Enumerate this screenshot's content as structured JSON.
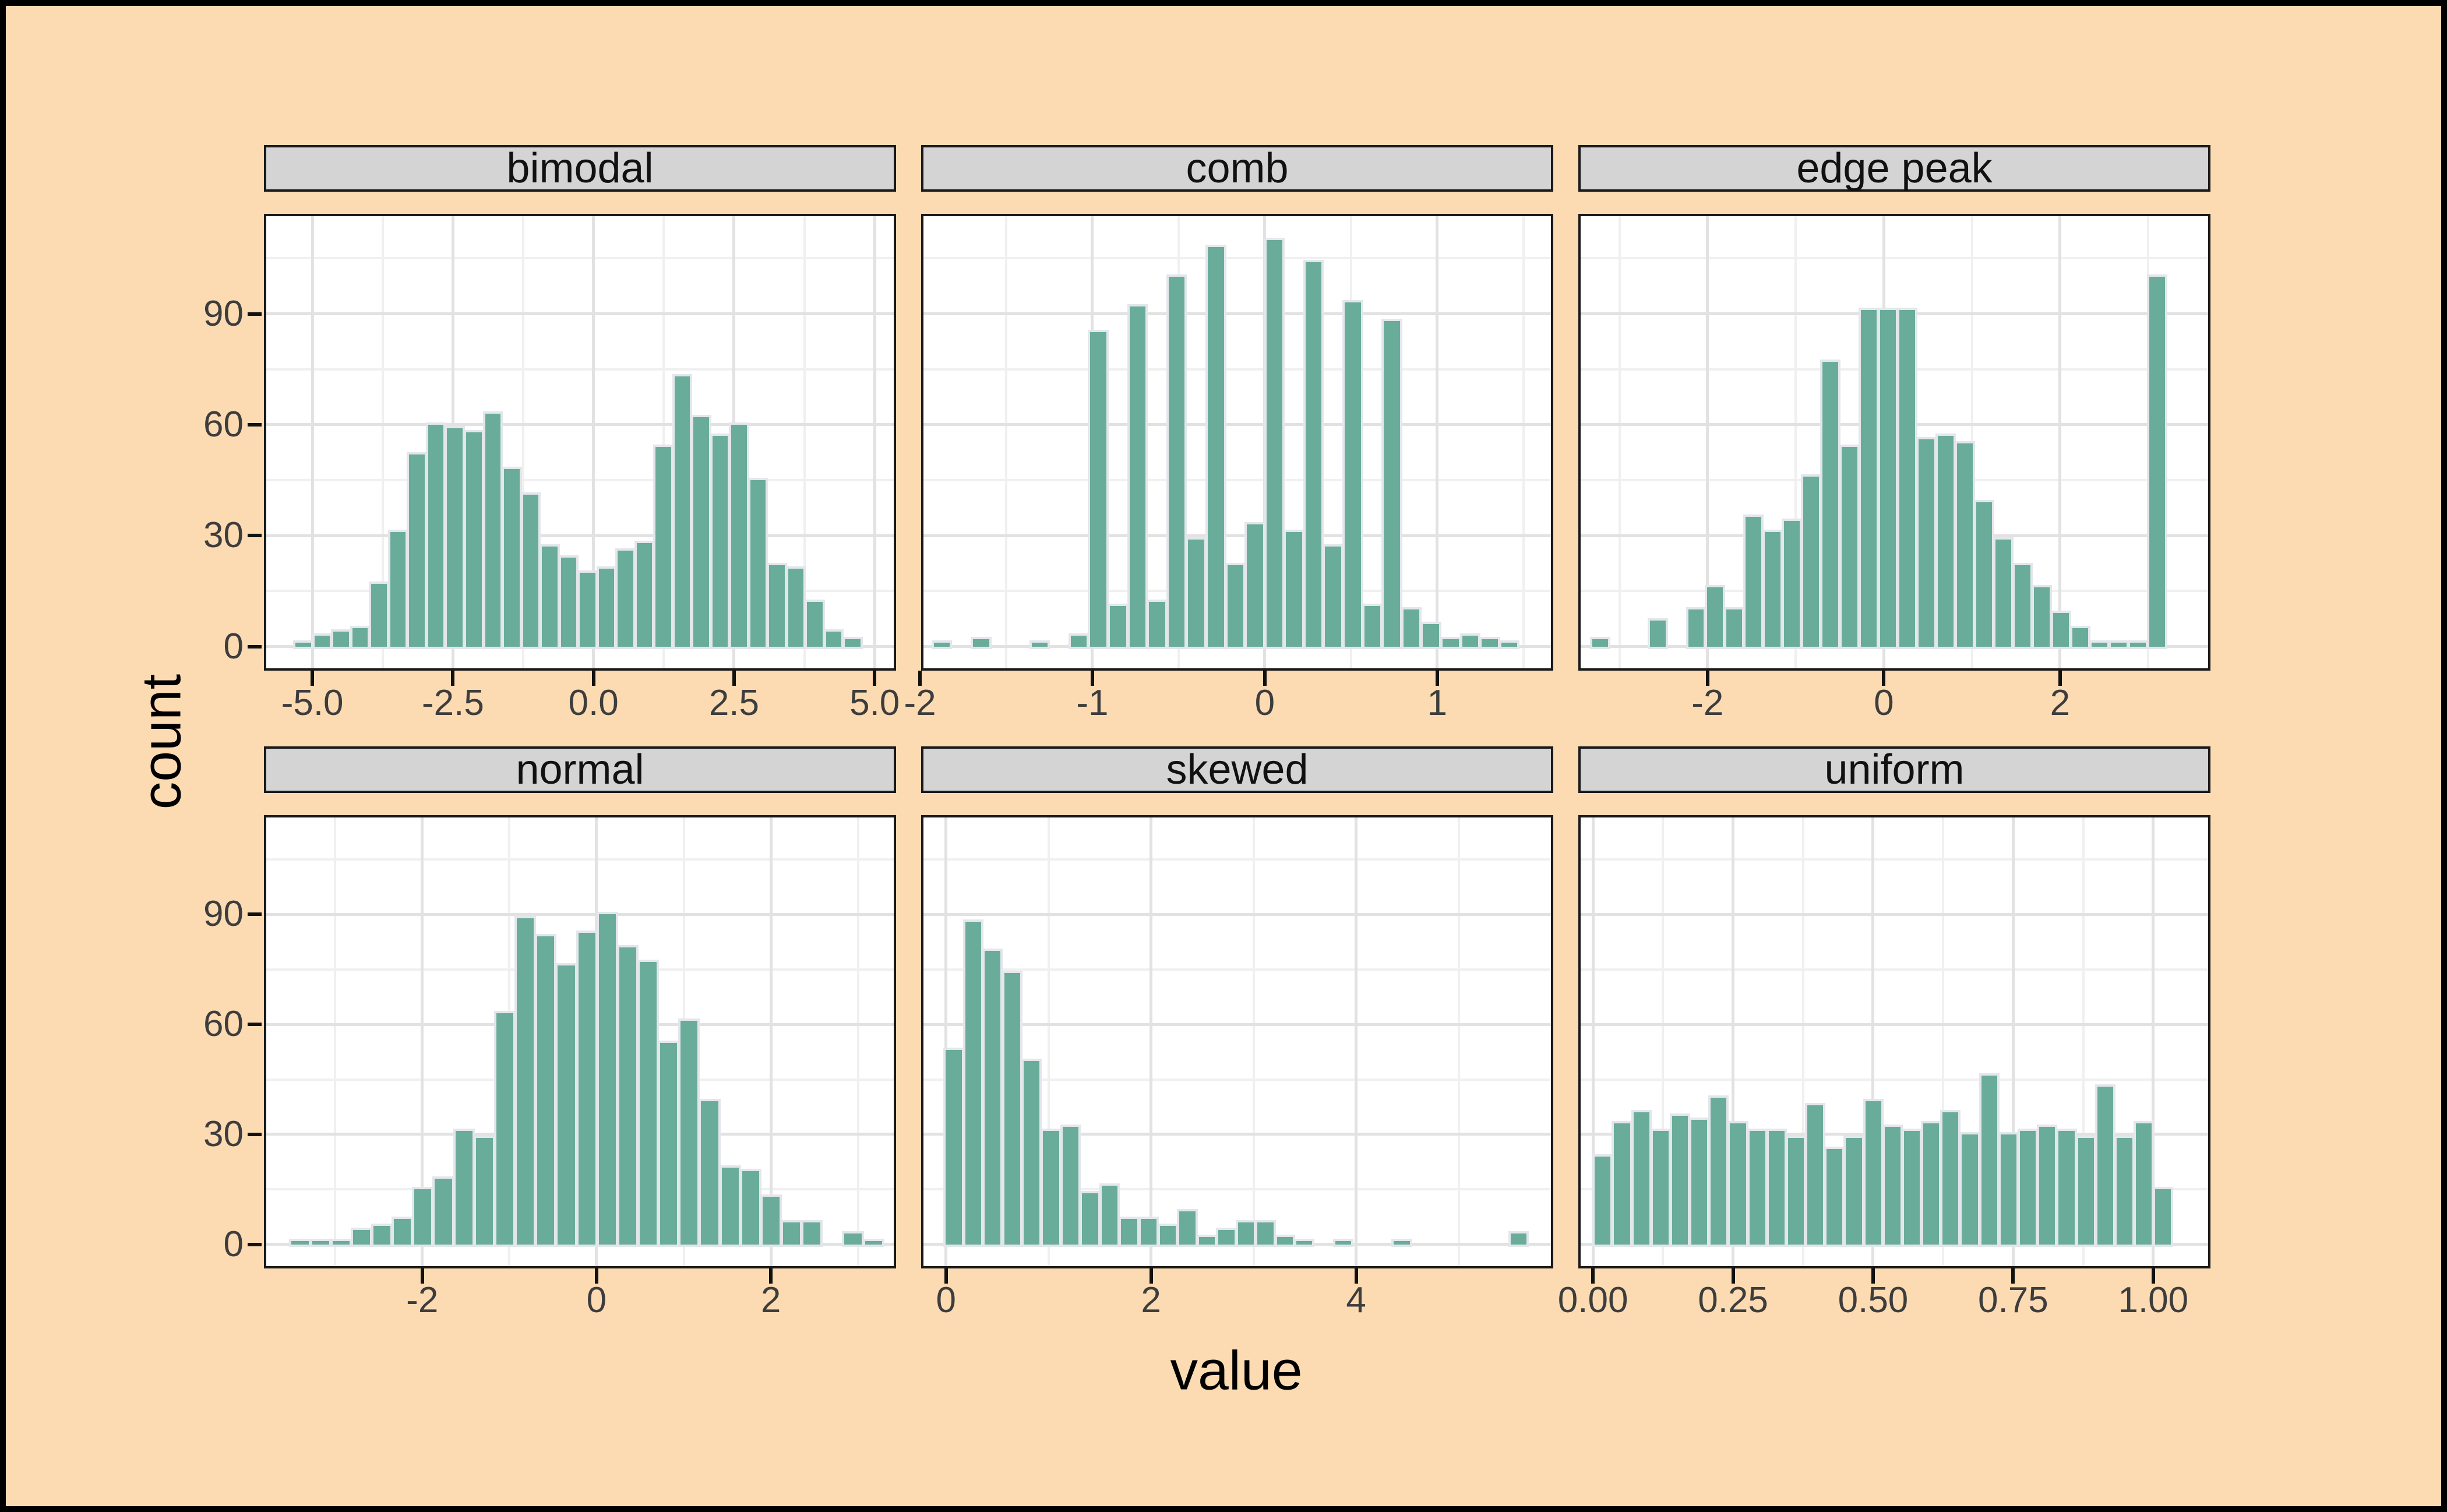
{
  "figure": {
    "background": "#FCDBB2",
    "frame_color": "#000000",
    "panel_bg": "#FFFFFF",
    "panel_border": "#1A1A1A",
    "strip_bg": "#D4D4D4",
    "grid_major": "#E2E2E2",
    "grid_minor": "#F0F0F0",
    "bar_fill": "#69AC99",
    "bar_edge": "#E3E7EC",
    "tick_text_color": "#3D3D3D"
  },
  "chart_data": {
    "type": "bar",
    "subtype": "faceted-histograms",
    "title": "",
    "xlabel": "value",
    "ylabel": "count",
    "legend": "none",
    "grid": "on",
    "y_ticks": [
      0,
      30,
      60,
      90
    ],
    "y_tick_labels": [
      "0",
      "30",
      "60",
      "90"
    ],
    "y_minor": [
      15,
      45,
      75,
      105
    ],
    "ylim": [
      -5.9,
      116.4
    ],
    "facets": [
      {
        "label": "bimodal",
        "row": 0,
        "col": 0,
        "xlim": [
          -5.82,
          5.34
        ],
        "x_ticks": [
          -5.0,
          -2.5,
          0.0,
          2.5,
          5.0
        ],
        "x_tick_labels": [
          "-5.0",
          "-2.5",
          "0.0",
          "2.5",
          "5.0"
        ],
        "x_minor": [
          -3.75,
          -1.25,
          1.25,
          3.75
        ],
        "bin_start": -5.33,
        "bin_width": 0.337,
        "counts": [
          1,
          3,
          4,
          5,
          17,
          31,
          52,
          60,
          59,
          58,
          63,
          48,
          41,
          27,
          24,
          20,
          21,
          26,
          28,
          54,
          73,
          62,
          57,
          60,
          45,
          22,
          21,
          12,
          4,
          2
        ]
      },
      {
        "label": "comb",
        "row": 0,
        "col": 1,
        "xlim": [
          -1.98,
          1.66
        ],
        "x_ticks": [
          -2,
          -1,
          0,
          1
        ],
        "x_tick_labels": [
          "-2",
          "-1",
          "0",
          "1"
        ],
        "x_minor": [
          -1.5,
          -0.5,
          0.5,
          1.5
        ],
        "bin_start": -1.93,
        "bin_width": 0.1135,
        "counts": [
          1,
          0,
          2,
          0,
          0,
          1,
          0,
          3,
          85,
          11,
          92,
          12,
          100,
          29,
          108,
          22,
          33,
          110,
          31,
          104,
          27,
          93,
          11,
          88,
          10,
          6,
          2,
          3,
          2,
          1
        ]
      },
      {
        "label": "edge peak",
        "row": 0,
        "col": 2,
        "xlim": [
          -3.44,
          3.68
        ],
        "x_ticks": [
          -2,
          0,
          2
        ],
        "x_tick_labels": [
          "-2",
          "0",
          "2"
        ],
        "x_minor": [
          -3,
          -1,
          1,
          3
        ],
        "bin_start": -3.33,
        "bin_width": 0.218,
        "counts": [
          2,
          0,
          0,
          7,
          0,
          10,
          16,
          10,
          35,
          31,
          34,
          46,
          77,
          54,
          91,
          91,
          91,
          56,
          57,
          55,
          39,
          29,
          22,
          16,
          9,
          5,
          1,
          1,
          1,
          100
        ]
      },
      {
        "label": "normal",
        "row": 1,
        "col": 0,
        "xlim": [
          -3.79,
          3.41
        ],
        "x_ticks": [
          -2,
          0,
          2
        ],
        "x_tick_labels": [
          "-2",
          "0",
          "2"
        ],
        "x_minor": [
          -3,
          -1,
          1,
          3
        ],
        "bin_start": -3.52,
        "bin_width": 0.235,
        "counts": [
          1,
          1,
          1,
          4,
          5,
          7,
          15,
          18,
          31,
          29,
          63,
          89,
          84,
          76,
          85,
          90,
          81,
          77,
          55,
          61,
          39,
          21,
          20,
          13,
          6,
          6,
          0,
          3,
          1
        ]
      },
      {
        "label": "skewed",
        "row": 1,
        "col": 1,
        "xlim": [
          -0.22,
          5.9
        ],
        "x_ticks": [
          0,
          2,
          4
        ],
        "x_tick_labels": [
          "0",
          "2",
          "4"
        ],
        "x_minor": [
          1,
          3,
          5
        ],
        "bin_start": -0.02,
        "bin_width": 0.19,
        "counts": [
          53,
          88,
          80,
          74,
          50,
          31,
          32,
          14,
          16,
          7,
          7,
          5,
          9,
          2,
          4,
          6,
          6,
          2,
          1,
          0,
          1,
          0,
          0,
          1,
          0,
          0,
          0,
          0,
          0,
          3
        ]
      },
      {
        "label": "uniform",
        "row": 1,
        "col": 2,
        "xlim": [
          -0.022,
          1.098
        ],
        "x_ticks": [
          0.0,
          0.25,
          0.5,
          0.75,
          1.0
        ],
        "x_tick_labels": [
          "0.00",
          "0.25",
          "0.50",
          "0.75",
          "1.00"
        ],
        "x_minor": [
          0.125,
          0.375,
          0.625,
          0.875
        ],
        "bin_start": 0.0,
        "bin_width": 0.0345,
        "counts": [
          24,
          33,
          36,
          31,
          35,
          34,
          40,
          33,
          31,
          31,
          29,
          38,
          26,
          29,
          39,
          32,
          31,
          33,
          36,
          30,
          46,
          30,
          31,
          32,
          31,
          29,
          43,
          29,
          33,
          15
        ]
      }
    ]
  }
}
